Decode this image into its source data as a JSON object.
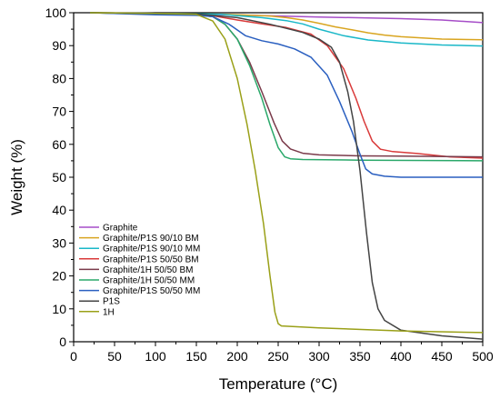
{
  "chart_data": {
    "type": "line",
    "title": "",
    "xlabel": "Temperature (°C)",
    "ylabel": "Weight (%)",
    "xlim": [
      0,
      500
    ],
    "ylim": [
      0,
      100
    ],
    "xticks": [
      0,
      50,
      100,
      150,
      200,
      250,
      300,
      350,
      400,
      450,
      500
    ],
    "yticks": [
      0,
      10,
      20,
      30,
      40,
      50,
      60,
      70,
      80,
      90,
      100
    ],
    "grid": false,
    "legend_position": "bottom-left",
    "series": [
      {
        "name": "Graphite",
        "color": "#a64dc8",
        "x": [
          20,
          100,
          200,
          300,
          400,
          450,
          500
        ],
        "y": [
          100,
          99.8,
          99.3,
          98.7,
          98.2,
          97.8,
          97.0
        ]
      },
      {
        "name": "Graphite/P1S 90/10 BM",
        "color": "#d9a520",
        "x": [
          20,
          100,
          150,
          200,
          240,
          260,
          280,
          300,
          320,
          340,
          360,
          380,
          400,
          450,
          500
        ],
        "y": [
          100,
          99.8,
          99.7,
          99.4,
          99.0,
          98.5,
          97.8,
          96.8,
          95.7,
          94.8,
          93.9,
          93.2,
          92.7,
          92.0,
          91.8
        ]
      },
      {
        "name": "Graphite/P1S 90/10 MM",
        "color": "#1ab8c8",
        "x": [
          20,
          100,
          150,
          180,
          200,
          230,
          260,
          280,
          300,
          330,
          360,
          400,
          450,
          500
        ],
        "y": [
          100,
          99.8,
          99.7,
          99.5,
          99.1,
          98.5,
          97.6,
          96.6,
          95.0,
          93.0,
          91.7,
          90.8,
          90.2,
          89.9
        ]
      },
      {
        "name": "Graphite/P1S 50/50 BM",
        "color": "#d93a3a",
        "x": [
          20,
          100,
          150,
          170,
          200,
          230,
          260,
          290,
          310,
          330,
          345,
          355,
          365,
          375,
          390,
          420,
          460,
          500
        ],
        "y": [
          100,
          99.7,
          99.5,
          99.1,
          97.8,
          96.6,
          95.5,
          93.5,
          90.0,
          83.0,
          74.0,
          67.0,
          61.0,
          58.5,
          57.8,
          57.2,
          56.2,
          55.8
        ]
      },
      {
        "name": "Graphite/1H 50/50 BM",
        "color": "#7a3a4a",
        "x": [
          20,
          100,
          150,
          170,
          185,
          200,
          215,
          230,
          245,
          255,
          265,
          280,
          300,
          350,
          400,
          500
        ],
        "y": [
          100,
          99.6,
          99.4,
          98.8,
          96.5,
          92.0,
          85.0,
          76.0,
          66.5,
          61.0,
          58.6,
          57.3,
          56.8,
          56.5,
          56.4,
          56.2
        ]
      },
      {
        "name": "Graphite/1H 50/50 MM",
        "color": "#2aa86a",
        "x": [
          20,
          100,
          150,
          170,
          185,
          200,
          215,
          230,
          240,
          250,
          258,
          265,
          280,
          350,
          500
        ],
        "y": [
          100,
          99.6,
          99.4,
          98.8,
          96.5,
          92.0,
          84.0,
          74.0,
          66.0,
          59.0,
          56.2,
          55.6,
          55.4,
          55.2,
          55.0
        ]
      },
      {
        "name": "Graphite/P1S 50/50 MM",
        "color": "#2a5fc0",
        "x": [
          20,
          100,
          150,
          170,
          190,
          210,
          230,
          250,
          270,
          290,
          310,
          325,
          340,
          350,
          357,
          365,
          380,
          400,
          500
        ],
        "y": [
          100,
          99.4,
          99.2,
          98.8,
          96.5,
          93.0,
          91.5,
          90.5,
          89.0,
          86.5,
          81.0,
          73.0,
          64.0,
          57.0,
          52.5,
          51.0,
          50.3,
          50.0,
          50.0
        ]
      },
      {
        "name": "P1S",
        "color": "#444444",
        "x": [
          20,
          100,
          150,
          200,
          240,
          280,
          300,
          315,
          325,
          335,
          342,
          350,
          358,
          365,
          372,
          380,
          400,
          450,
          500
        ],
        "y": [
          100,
          99.8,
          99.6,
          98.5,
          96.5,
          94.0,
          92.0,
          89.5,
          85.0,
          76.0,
          67.0,
          52.0,
          33.0,
          18.0,
          10.0,
          6.5,
          3.5,
          1.8,
          0.8
        ]
      },
      {
        "name": "1H",
        "color": "#9aa018",
        "x": [
          20,
          100,
          150,
          170,
          185,
          200,
          212,
          222,
          232,
          240,
          246,
          250,
          254,
          300,
          400,
          500
        ],
        "y": [
          100,
          99.8,
          99.5,
          97.5,
          92.0,
          80.0,
          66.0,
          52.0,
          36.0,
          20.0,
          9.0,
          5.5,
          4.8,
          4.2,
          3.3,
          2.8
        ]
      }
    ]
  }
}
